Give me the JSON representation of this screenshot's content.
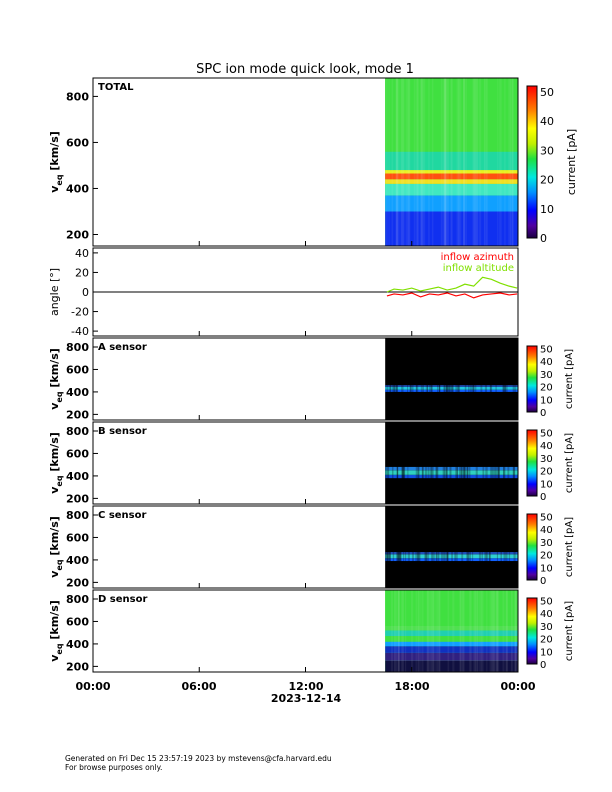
{
  "title": "SPC ion mode quick look, mode 1",
  "footer": {
    "line1": "Generated on Fri Dec 15 23:57:19 2023 by mstevens@cfa.harvard.edu",
    "line2": "For browse purposes only."
  },
  "time_axis": {
    "ticks": [
      "00:00",
      "06:00",
      "12:00",
      "18:00",
      "00:00"
    ],
    "date_label": "2023-12-14"
  },
  "chart_data": [
    {
      "type": "heatmap",
      "panel_label": "TOTAL",
      "ylabel": "v",
      "ylabel_sub": "eq",
      "ylabel_unit": "[km/s]",
      "yticks": [
        200,
        400,
        600,
        800
      ],
      "ylim": [
        150,
        880
      ],
      "xlim_hours": [
        0,
        24
      ],
      "data_start_hour": 16.5,
      "colorbar_label": "current [pA]",
      "colorbar_ticks": [
        0,
        10,
        20,
        30,
        40,
        50
      ],
      "bands": [
        {
          "v": [
            150,
            300
          ],
          "color": "#1030f0"
        },
        {
          "v": [
            300,
            370
          ],
          "color": "#10a0ff"
        },
        {
          "v": [
            370,
            420
          ],
          "color": "#40e8c0"
        },
        {
          "v": [
            420,
            440
          ],
          "color": "#f0e020"
        },
        {
          "v": [
            440,
            465
          ],
          "color": "#ff5010"
        },
        {
          "v": [
            465,
            480
          ],
          "color": "#e8f020"
        },
        {
          "v": [
            480,
            560
          ],
          "color": "#20d8a0"
        },
        {
          "v": [
            560,
            880
          ],
          "color": "#40e040"
        }
      ]
    },
    {
      "type": "line",
      "ylabel": "angle [°]",
      "yticks": [
        -40,
        -20,
        0,
        20,
        40
      ],
      "ylim": [
        -45,
        45
      ],
      "xlim_hours": [
        0,
        24
      ],
      "series": [
        {
          "name": "inflow azimuth",
          "color": "#ff0000",
          "x": [
            16.6,
            17.0,
            17.5,
            18.0,
            18.5,
            19.0,
            19.5,
            20.0,
            20.5,
            21.0,
            21.5,
            22.0,
            22.5,
            23.0,
            23.5,
            23.95
          ],
          "y": [
            -4,
            -2,
            -3,
            -1,
            -5,
            -2,
            -3,
            -1,
            -4,
            -2,
            -6,
            -3,
            -2,
            -1,
            -3,
            -2
          ]
        },
        {
          "name": "inflow altitude",
          "color": "#80e000",
          "x": [
            16.6,
            17.0,
            17.5,
            18.0,
            18.5,
            19.0,
            19.5,
            20.0,
            20.5,
            21.0,
            21.5,
            22.0,
            22.5,
            23.0,
            23.5,
            23.95
          ],
          "y": [
            0,
            3,
            2,
            4,
            1,
            3,
            5,
            2,
            4,
            8,
            6,
            15,
            13,
            9,
            6,
            4
          ]
        }
      ]
    },
    {
      "type": "heatmap",
      "panel_label": "A sensor",
      "ylabel": "v",
      "ylabel_sub": "eq",
      "ylabel_unit": "[km/s]",
      "yticks": [
        200,
        400,
        600,
        800
      ],
      "ylim": [
        150,
        880
      ],
      "data_start_hour": 16.5,
      "colorbar_label": "current [pA]",
      "colorbar_ticks": [
        0,
        10,
        20,
        30,
        40,
        50
      ],
      "bands": [
        {
          "v": [
            400,
            420
          ],
          "color": "#1060ff"
        },
        {
          "v": [
            420,
            445
          ],
          "color": "#20c8e0"
        },
        {
          "v": [
            445,
            460
          ],
          "color": "#2050c0"
        }
      ]
    },
    {
      "type": "heatmap",
      "panel_label": "B sensor",
      "ylabel": "v",
      "ylabel_sub": "eq",
      "ylabel_unit": "[km/s]",
      "yticks": [
        200,
        400,
        600,
        800
      ],
      "ylim": [
        150,
        880
      ],
      "data_start_hour": 16.5,
      "colorbar_label": "current [pA]",
      "colorbar_ticks": [
        0,
        10,
        20,
        30,
        40,
        50
      ],
      "bands": [
        {
          "v": [
            380,
            410
          ],
          "color": "#1050e0"
        },
        {
          "v": [
            410,
            450
          ],
          "color": "#30d0c0"
        },
        {
          "v": [
            450,
            480
          ],
          "color": "#2080e0"
        }
      ]
    },
    {
      "type": "heatmap",
      "panel_label": "C sensor",
      "ylabel": "v",
      "ylabel_sub": "eq",
      "ylabel_unit": "[km/s]",
      "yticks": [
        200,
        400,
        600,
        800
      ],
      "ylim": [
        150,
        880
      ],
      "data_start_hour": 16.5,
      "colorbar_label": "current [pA]",
      "colorbar_ticks": [
        0,
        10,
        20,
        30,
        40,
        50
      ],
      "bands": [
        {
          "v": [
            390,
            415
          ],
          "color": "#1060ff"
        },
        {
          "v": [
            415,
            450
          ],
          "color": "#30d0d0"
        },
        {
          "v": [
            450,
            470
          ],
          "color": "#2050c0"
        }
      ]
    },
    {
      "type": "heatmap",
      "panel_label": "D sensor",
      "ylabel": "v",
      "ylabel_sub": "eq",
      "ylabel_unit": "[km/s]",
      "yticks": [
        200,
        400,
        600,
        800
      ],
      "ylim": [
        150,
        880
      ],
      "data_start_hour": 16.5,
      "colorbar_label": "current [pA]",
      "colorbar_ticks": [
        0,
        10,
        20,
        30,
        40,
        50
      ],
      "bands": [
        {
          "v": [
            150,
            250
          ],
          "color": "#101040"
        },
        {
          "v": [
            250,
            320
          ],
          "color": "#302080"
        },
        {
          "v": [
            320,
            380
          ],
          "color": "#1030c0"
        },
        {
          "v": [
            380,
            420
          ],
          "color": "#10a0ff"
        },
        {
          "v": [
            420,
            470
          ],
          "color": "#40e040"
        },
        {
          "v": [
            470,
            520
          ],
          "color": "#20d0b0"
        },
        {
          "v": [
            520,
            560
          ],
          "color": "#50e050"
        },
        {
          "v": [
            560,
            880
          ],
          "color": "#40e040"
        }
      ]
    }
  ]
}
